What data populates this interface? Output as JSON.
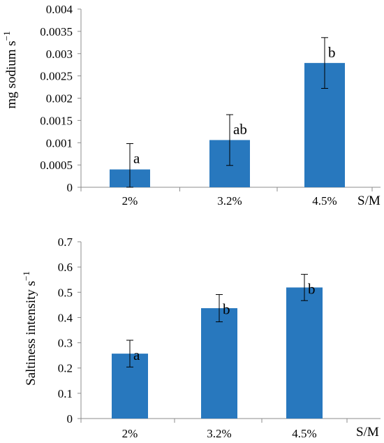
{
  "chart_data": [
    {
      "type": "bar",
      "categories": [
        "2%",
        "3.2%",
        "4.5%"
      ],
      "values": [
        0.0004,
        0.00106,
        0.00279
      ],
      "error": [
        0.00058,
        0.00057,
        0.00057
      ],
      "significance_labels": [
        "a",
        "ab",
        "b"
      ],
      "title": "",
      "xlabel": "S/M",
      "ylabel": "mg sodium s",
      "ylabel_superscript": "−1",
      "ylim": [
        0,
        0.004
      ],
      "yticks": [
        "0",
        "0.0005",
        "0.001",
        "0.0015",
        "0.002",
        "0.0025",
        "0.003",
        "0.0035",
        "0.004"
      ],
      "bar_color": "#2878be",
      "grid": false,
      "legend": "none"
    },
    {
      "type": "bar",
      "categories": [
        "2%",
        "3.2%",
        "4.5%"
      ],
      "values": [
        0.257,
        0.437,
        0.519
      ],
      "error": [
        0.053,
        0.054,
        0.052
      ],
      "significance_labels": [
        "a",
        "b",
        "b"
      ],
      "title": "",
      "xlabel": "S/M",
      "ylabel": "Saltiness intensity s",
      "ylabel_superscript": "−1",
      "ylim": [
        0,
        0.7
      ],
      "yticks": [
        "0",
        "0.1",
        "0.2",
        "0.3",
        "0.4",
        "0.5",
        "0.6",
        "0.7"
      ],
      "bar_color": "#2878be",
      "grid": false,
      "legend": "none"
    }
  ]
}
